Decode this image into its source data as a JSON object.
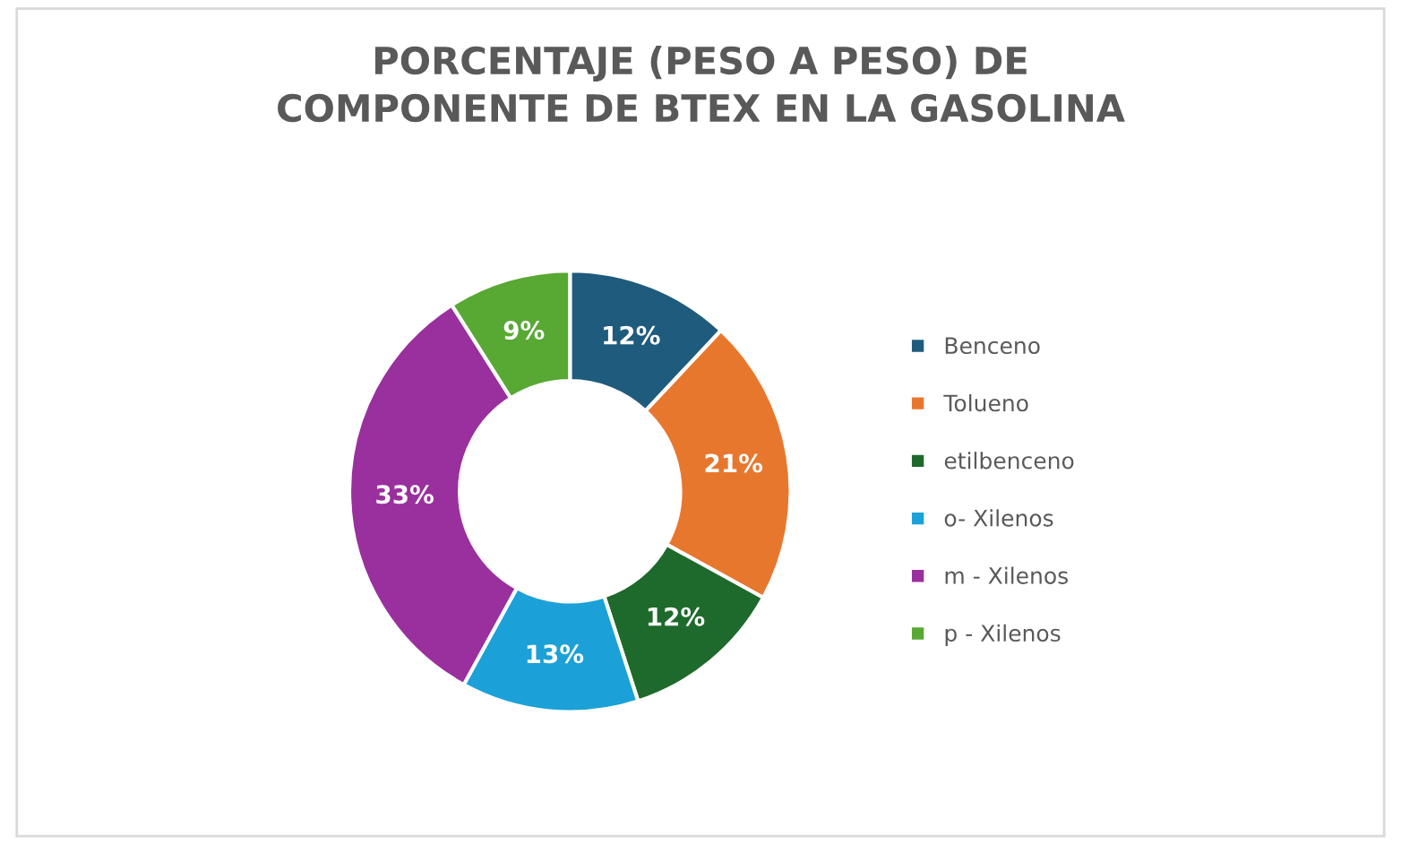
{
  "chart_data": {
    "type": "donut",
    "title": "PORCENTAJE (PESO A PESO) DE\nCOMPONENTE DE BTEX EN LA GASOLINA",
    "categories": [
      "Benceno",
      "Tolueno",
      "etilbenceno",
      "o- Xilenos",
      "m - Xilenos",
      "p - Xilenos"
    ],
    "values": [
      12,
      21,
      12,
      13,
      33,
      9
    ],
    "value_labels": [
      "12%",
      "21%",
      "12%",
      "13%",
      "33%",
      "9%"
    ],
    "colors": [
      "#1f5b7d",
      "#e8772e",
      "#1e6a2c",
      "#1ba1d8",
      "#9a2f9e",
      "#58a834"
    ],
    "legend": "right"
  }
}
